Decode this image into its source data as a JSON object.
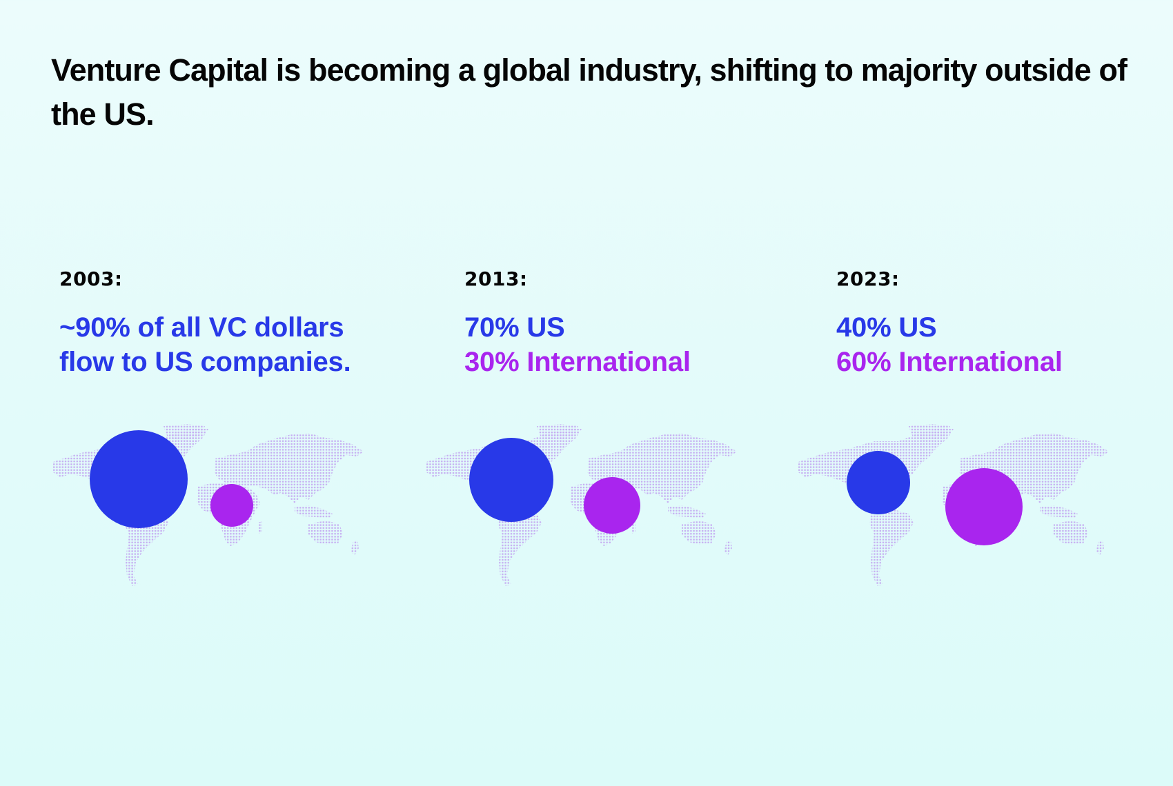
{
  "title": "Venture Capital is becoming a global industry, shifting to majority outside of the US.",
  "colors": {
    "us": "#2839E8",
    "international": "#A925EE",
    "map_dots": "#C6AEF2",
    "text": "#050505"
  },
  "panels": [
    {
      "year_label": "2003:",
      "line1": "~90% of all VC dollars",
      "line2": "flow to US companies."
    },
    {
      "year_label": "2013:",
      "line1": "70% US",
      "line2": "30% International"
    },
    {
      "year_label": "2023:",
      "line1": "40% US",
      "line2": "60% International"
    }
  ],
  "chart_data": {
    "type": "bubble-map",
    "title": "Venture Capital is becoming a global industry, shifting to majority outside of the US.",
    "categories": [
      "2003",
      "2013",
      "2023"
    ],
    "series": [
      {
        "name": "US",
        "values": [
          90,
          70,
          40
        ],
        "color": "#2839E8"
      },
      {
        "name": "International",
        "values": [
          10,
          30,
          60
        ],
        "color": "#A925EE"
      }
    ],
    "unit": "% of VC dollars"
  }
}
